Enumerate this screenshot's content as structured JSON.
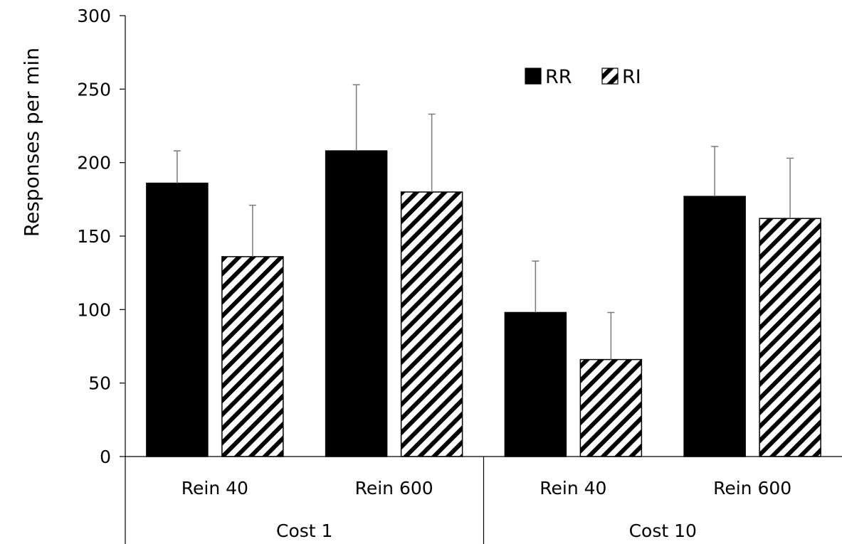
{
  "chart_data": {
    "type": "bar",
    "title": "",
    "ylabel": "Responses per min",
    "ylim": [
      0,
      300
    ],
    "yticks": [
      0,
      50,
      100,
      150,
      200,
      250,
      300
    ],
    "groups": [
      {
        "label": "Cost 1",
        "categories": [
          "Rein 40",
          "Rein 600"
        ]
      },
      {
        "label": "Cost 10",
        "categories": [
          "Rein 40",
          "Rein 600"
        ]
      }
    ],
    "categories": [
      "Rein 40",
      "Rein 600",
      "Rein 40",
      "Rein 600"
    ],
    "series": [
      {
        "name": "RR",
        "fill": "solid",
        "color": "#000000",
        "values": [
          186,
          208,
          98,
          177
        ],
        "error": [
          22,
          45,
          35,
          34
        ]
      },
      {
        "name": "RI",
        "fill": "diagonal-hatch",
        "color": "#000000",
        "values": [
          136,
          180,
          66,
          162
        ],
        "error": [
          35,
          53,
          32,
          41
        ]
      }
    ],
    "legend_position": "top-right",
    "grid": false,
    "error_bars": "upper"
  }
}
